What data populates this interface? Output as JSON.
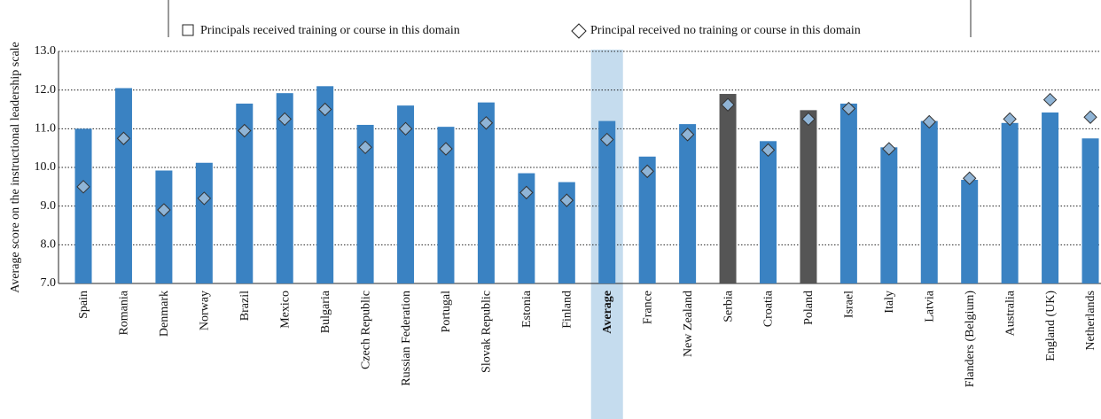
{
  "chart_data": {
    "type": "bar_with_markers",
    "y_label": "Average score on the instructional leadership scale",
    "categories": [
      "Spain",
      "Romania",
      "Denmark",
      "Norway",
      "Brazil",
      "Mexico",
      "Bulgaria",
      "Czech Republic",
      "Russian Federation",
      "Portugal",
      "Slovak Republic",
      "Estonia",
      "Finland",
      "Average",
      "France",
      "New Zealand",
      "Serbia",
      "Croatia",
      "Poland",
      "Israel",
      "Italy",
      "Latvia",
      "Flanders (Belgium)",
      "Australia",
      "England (UK)",
      "Netherlands"
    ],
    "series": [
      {
        "name": "Principals received training or course in this domain",
        "color": "#3a82c2",
        "marker": "bar",
        "point_colors": {
          "16": "#555555",
          "18": "#555555"
        },
        "values": [
          11.0,
          12.05,
          9.92,
          10.12,
          11.65,
          11.92,
          12.1,
          11.1,
          11.6,
          11.05,
          11.68,
          9.85,
          9.62,
          11.2,
          10.28,
          11.12,
          11.9,
          10.68,
          11.48,
          11.65,
          10.52,
          11.2,
          9.68,
          11.15,
          11.42,
          10.75
        ]
      },
      {
        "name": "Principal received no training or course in this domain",
        "color": "#8fb4d6",
        "marker": "diamond",
        "values": [
          9.5,
          10.75,
          8.9,
          9.2,
          10.95,
          11.25,
          11.5,
          10.52,
          11.0,
          10.48,
          11.15,
          9.35,
          9.15,
          10.72,
          9.9,
          10.85,
          11.62,
          10.45,
          11.25,
          11.52,
          10.48,
          11.18,
          9.72,
          11.25,
          11.75,
          11.3
        ]
      }
    ],
    "highlight_index": 13,
    "highlight_color": "#c5dcee",
    "ylim": [
      7,
      13
    ],
    "yticks": [
      {
        "value": 7,
        "label": "7.0"
      },
      {
        "value": 8,
        "label": "8.0"
      },
      {
        "value": 9,
        "label": "9.0"
      },
      {
        "value": 10,
        "label": "10.0"
      },
      {
        "value": 11,
        "label": "11.0"
      },
      {
        "value": 12,
        "label": "12.0"
      },
      {
        "value": 13,
        "label": "13.0"
      }
    ],
    "grid": true
  }
}
